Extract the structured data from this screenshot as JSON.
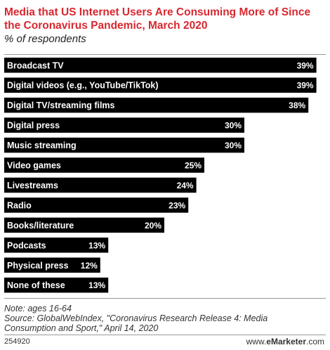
{
  "header": {
    "title": "Media that US Internet Users Are Consuming More of Since the Coronavirus Pandemic, March 2020",
    "subtitle": "% of respondents"
  },
  "chart_data": {
    "type": "bar",
    "orientation": "horizontal",
    "categories": [
      "Broadcast TV",
      "Digital videos (e.g., YouTube/TikTok)",
      "Digital TV/streaming films",
      "Digital press",
      "Music streaming",
      "Video games",
      "Livestreams",
      "Radio",
      "Books/literature",
      "Podcasts",
      "Physical press",
      "None of these"
    ],
    "values": [
      39,
      39,
      38,
      30,
      30,
      25,
      24,
      23,
      20,
      13,
      12,
      13
    ],
    "value_labels": [
      "39%",
      "39%",
      "38%",
      "30%",
      "30%",
      "25%",
      "24%",
      "23%",
      "20%",
      "13%",
      "12%",
      "13%"
    ],
    "xlim": [
      0,
      40
    ],
    "bar_color": "#000000",
    "label_color": "#ffffff",
    "grid": false,
    "legend": "none"
  },
  "footer": {
    "note_line1": "Note: ages 16-64",
    "note_line2": "Source: GlobalWebIndex, \"Coronavirus Research Release 4: Media",
    "note_line3": "Consumption and Sport,\" April 14, 2020",
    "chart_id": "254920",
    "brand_prefix": "www.",
    "brand_name": "eMarketer",
    "brand_suffix": ".com"
  }
}
